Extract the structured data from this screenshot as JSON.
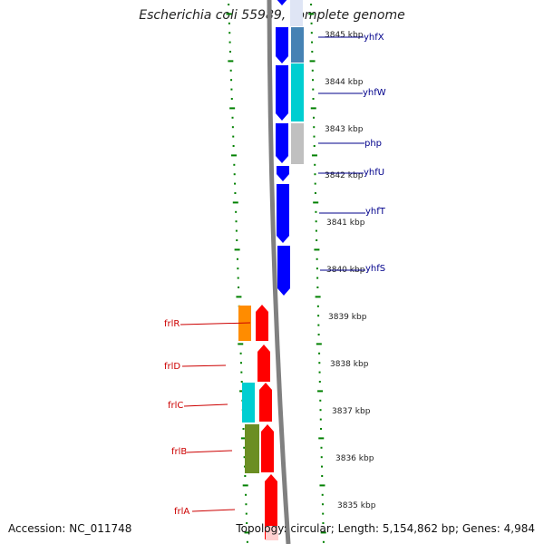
{
  "title": "Escherichia coli 55989, complete genome",
  "accession": "Accession: NC_011748",
  "topology": "Topology: circular; Length: 5,154,862 bp; Genes: 4,984",
  "colors": {
    "forward_cds": "#0000ff",
    "reverse_cds": "#ff0000",
    "gene_label_right": "#00008b",
    "gene_label_left": "#cc0000",
    "tick": "#008000",
    "backbone": "#808080"
  },
  "scale_labels": [
    "3845 kbp",
    "3844 kbp",
    "3843 kbp",
    "3842 kbp",
    "3841 kbp",
    "3840 kbp",
    "3839 kbp",
    "3838 kbp",
    "3837 kbp",
    "3836 kbp",
    "3835 kbp"
  ],
  "right_genes": [
    "yhfX",
    "yhfW",
    "php",
    "yhfU",
    "yhfT",
    "yhfS"
  ],
  "left_genes": [
    "frlR",
    "frlD",
    "frlC",
    "frlB",
    "frlA"
  ],
  "cog_colors": {
    "yhfX": "#4682b4",
    "yhfW": "#00ced1",
    "php": "#c0c0c0",
    "frlR": "#ff8c00",
    "frlC": "#00ced1",
    "frlB": "#6b8e23"
  }
}
